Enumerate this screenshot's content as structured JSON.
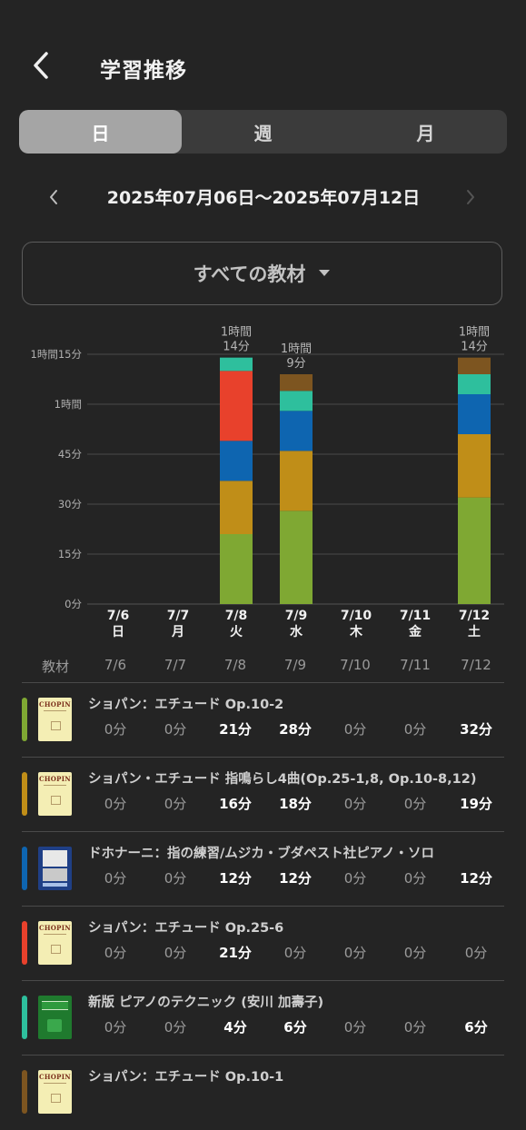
{
  "header": {
    "title": "学習推移",
    "back_icon": "chevron-left-icon"
  },
  "tabs": [
    {
      "label": "日",
      "active": true
    },
    {
      "label": "週",
      "active": false
    },
    {
      "label": "月",
      "active": false
    }
  ],
  "date_nav": {
    "range": "2025年07月06日〜2025年07月12日",
    "prev_icon": "chevron-left-icon",
    "next_icon": "chevron-right-icon"
  },
  "material_select": {
    "label": "すべての教材",
    "icon": "triangle-down-icon"
  },
  "colors": {
    "green": "#7fa833",
    "gold": "#c08e18",
    "blue": "#0e65b0",
    "red": "#e8412c",
    "teal": "#2ebf9d",
    "brown": "#7d5520"
  },
  "chart_data": {
    "type": "bar",
    "stacked": true,
    "y_ticks": [
      {
        "minutes": 0,
        "label": "0分"
      },
      {
        "minutes": 15,
        "label": "15分"
      },
      {
        "minutes": 30,
        "label": "30分"
      },
      {
        "minutes": 45,
        "label": "45分"
      },
      {
        "minutes": 60,
        "label": "1時間"
      },
      {
        "minutes": 75,
        "label": "1時間15分"
      }
    ],
    "ylim": [
      0,
      75
    ],
    "grid": true,
    "categories": [
      {
        "date": "7/6",
        "weekday": "日"
      },
      {
        "date": "7/7",
        "weekday": "月"
      },
      {
        "date": "7/8",
        "weekday": "火"
      },
      {
        "date": "7/9",
        "weekday": "水"
      },
      {
        "date": "7/10",
        "weekday": "木"
      },
      {
        "date": "7/11",
        "weekday": "金"
      },
      {
        "date": "7/12",
        "weekday": "土"
      }
    ],
    "totals": [
      {
        "index": 2,
        "line1": "1時間",
        "line2": "14分"
      },
      {
        "index": 3,
        "line1": "1時間",
        "line2": "9分"
      },
      {
        "index": 6,
        "line1": "1時間",
        "line2": "14分"
      }
    ],
    "series": [
      {
        "color": "#7fa833",
        "values": [
          0,
          0,
          21,
          28,
          0,
          0,
          32
        ]
      },
      {
        "color": "#c08e18",
        "values": [
          0,
          0,
          16,
          18,
          0,
          0,
          19
        ]
      },
      {
        "color": "#0e65b0",
        "values": [
          0,
          0,
          12,
          12,
          0,
          0,
          12
        ]
      },
      {
        "color": "#e8412c",
        "values": [
          0,
          0,
          21,
          0,
          0,
          0,
          0
        ]
      },
      {
        "color": "#2ebf9d",
        "values": [
          0,
          0,
          4,
          6,
          0,
          0,
          6
        ]
      },
      {
        "color": "#7d5520",
        "values": [
          0,
          0,
          0,
          5,
          0,
          0,
          5
        ]
      }
    ]
  },
  "table": {
    "header_label": "教材",
    "dates": [
      "7/6",
      "7/7",
      "7/8",
      "7/9",
      "7/10",
      "7/11",
      "7/12"
    ],
    "rows": [
      {
        "title": "ショパン：エチュード Op.10-2",
        "color": "#7fa833",
        "thumb": "chopin-cover",
        "thumb_text": "CHOPIN",
        "values": [
          "0分",
          "0分",
          "21分",
          "28分",
          "0分",
          "0分",
          "32分"
        ]
      },
      {
        "title": "ショパン・エチュード 指鳴らし4曲(Op.25-1,8, Op.10-8,12)",
        "color": "#c08e18",
        "thumb": "chopin-cover",
        "thumb_text": "CHOPIN",
        "values": [
          "0分",
          "0分",
          "16分",
          "18分",
          "0分",
          "0分",
          "19分"
        ]
      },
      {
        "title": "ドホナーニ：指の練習/ムジカ・ブダペスト社ピアノ・ソロ",
        "color": "#0e65b0",
        "thumb": "dohnanyi-cover",
        "thumb_text": "",
        "values": [
          "0分",
          "0分",
          "12分",
          "12分",
          "0分",
          "0分",
          "12分"
        ]
      },
      {
        "title": "ショパン：エチュード Op.25-6",
        "color": "#e8412c",
        "thumb": "chopin-cover",
        "thumb_text": "CHOPIN",
        "values": [
          "0分",
          "0分",
          "21分",
          "0分",
          "0分",
          "0分",
          "0分"
        ]
      },
      {
        "title": "新版 ピアノのテクニック (安川 加壽子)",
        "color": "#2ebf9d",
        "thumb": "green-cover",
        "thumb_text": "",
        "values": [
          "0分",
          "0分",
          "4分",
          "6分",
          "0分",
          "0分",
          "6分"
        ]
      },
      {
        "title": "ショパン：エチュード Op.10-1",
        "color": "#7d5520",
        "thumb": "chopin-cover",
        "thumb_text": "CHOPIN",
        "values": []
      }
    ]
  }
}
